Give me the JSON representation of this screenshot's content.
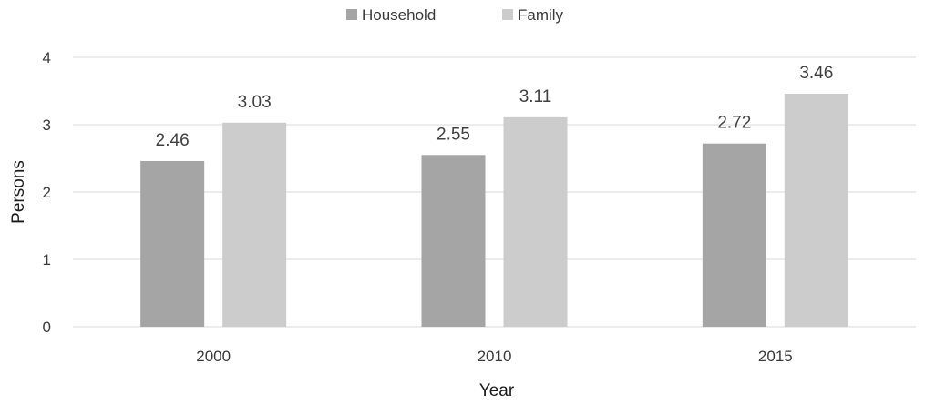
{
  "chart_data": {
    "type": "bar",
    "categories": [
      "2000",
      "2010",
      "2015"
    ],
    "series": [
      {
        "name": "Household",
        "values": [
          2.46,
          2.55,
          2.72
        ],
        "color": "#a5a5a5"
      },
      {
        "name": "Family",
        "values": [
          3.03,
          3.11,
          3.46
        ],
        "color": "#cccccc"
      }
    ],
    "data_labels": [
      [
        "2.46",
        "2.55",
        "2.72"
      ],
      [
        "3.03",
        "3.11",
        "3.46"
      ]
    ],
    "yticks": [
      "0",
      "1",
      "2",
      "3",
      "4"
    ],
    "xlabel": "Year",
    "ylabel": "Persons",
    "ylim": [
      0,
      4
    ],
    "grid": true,
    "legend_position": "top-center"
  }
}
